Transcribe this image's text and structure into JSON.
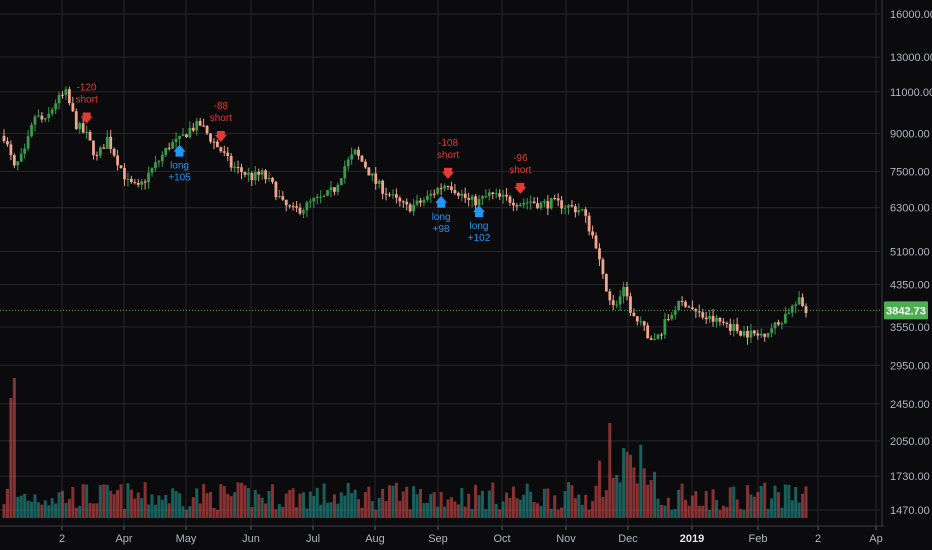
{
  "chart_data": {
    "type": "candlestick",
    "y_scale": "log",
    "grid": true,
    "y_ticks": [
      "16000.00",
      "13000.00",
      "11000.00",
      "9000.00",
      "7500.00",
      "6300.00",
      "5100.00",
      "4350.00",
      "3550.00",
      "2950.00",
      "2450.00",
      "2050.00",
      "1730.00",
      "1470.00"
    ],
    "y_tick_values": [
      16000,
      13000,
      11000,
      9000,
      7500,
      6300,
      5100,
      4350,
      3550,
      2950,
      2450,
      2050,
      1730,
      1470
    ],
    "x_ticks": [
      "2",
      "Apr",
      "May",
      "Jun",
      "Jul",
      "Aug",
      "Sep",
      "Oct",
      "Nov",
      "Dec",
      "2019",
      "Feb",
      "2",
      "Ap"
    ],
    "x_tick_bold": "2019",
    "price_series": [
      [
        0,
        8900
      ],
      [
        3,
        7600
      ],
      [
        6,
        8200
      ],
      [
        9,
        9800
      ],
      [
        12,
        9500
      ],
      [
        15,
        10500
      ],
      [
        18,
        10900
      ],
      [
        21,
        9400
      ],
      [
        24,
        8900
      ],
      [
        27,
        8000
      ],
      [
        30,
        8800
      ],
      [
        33,
        7900
      ],
      [
        36,
        7100
      ],
      [
        39,
        6900
      ],
      [
        42,
        7400
      ],
      [
        45,
        7900
      ],
      [
        48,
        8500
      ],
      [
        51,
        8700
      ],
      [
        54,
        9200
      ],
      [
        57,
        9400
      ],
      [
        60,
        8800
      ],
      [
        63,
        8300
      ],
      [
        66,
        7700
      ],
      [
        69,
        7500
      ],
      [
        72,
        7300
      ],
      [
        75,
        7400
      ],
      [
        78,
        7000
      ],
      [
        81,
        6400
      ],
      [
        84,
        6200
      ],
      [
        87,
        6300
      ],
      [
        90,
        6500
      ],
      [
        93,
        6600
      ],
      [
        96,
        6900
      ],
      [
        99,
        7700
      ],
      [
        102,
        8200
      ],
      [
        105,
        7700
      ],
      [
        108,
        7100
      ],
      [
        111,
        6800
      ],
      [
        114,
        6500
      ],
      [
        117,
        6300
      ],
      [
        120,
        6400
      ],
      [
        123,
        6600
      ],
      [
        126,
        6900
      ],
      [
        129,
        7100
      ],
      [
        132,
        6800
      ],
      [
        135,
        6500
      ],
      [
        138,
        6500
      ],
      [
        141,
        6700
      ],
      [
        144,
        6600
      ],
      [
        147,
        6550
      ],
      [
        150,
        6450
      ],
      [
        153,
        6500
      ],
      [
        156,
        6400
      ],
      [
        159,
        6450
      ],
      [
        162,
        6400
      ],
      [
        165,
        6300
      ],
      [
        168,
        6200
      ],
      [
        171,
        5500
      ],
      [
        174,
        4500
      ],
      [
        177,
        3900
      ],
      [
        180,
        4200
      ],
      [
        183,
        3700
      ],
      [
        186,
        3500
      ],
      [
        189,
        3300
      ],
      [
        192,
        3600
      ],
      [
        195,
        3900
      ],
      [
        198,
        4000
      ],
      [
        201,
        3800
      ],
      [
        204,
        3700
      ],
      [
        207,
        3650
      ],
      [
        210,
        3600
      ],
      [
        213,
        3500
      ],
      [
        216,
        3450
      ],
      [
        219,
        3400
      ],
      [
        222,
        3500
      ],
      [
        225,
        3600
      ],
      [
        228,
        3850
      ],
      [
        231,
        4000
      ],
      [
        233,
        3842.73
      ]
    ],
    "volume_min": 1470,
    "volume_ticks_note": "volume bars share bottom panel",
    "last_price": "3842.73",
    "last_price_value": 3842.73,
    "signals": [
      {
        "label": "-120",
        "label2": "short",
        "kind": "short",
        "x": 24,
        "price": 9400
      },
      {
        "label": "long",
        "label2": "+105",
        "kind": "long",
        "x": 51,
        "price": 8700
      },
      {
        "label": "-88",
        "label2": "short",
        "kind": "short",
        "x": 63,
        "price": 8600
      },
      {
        "label": "-108",
        "label2": "short",
        "kind": "short",
        "x": 129,
        "price": 7200
      },
      {
        "label": "long",
        "label2": "+98",
        "kind": "long",
        "x": 127,
        "price": 6800
      },
      {
        "label": "long",
        "label2": "+102",
        "kind": "long",
        "x": 138,
        "price": 6500
      },
      {
        "label": "-96",
        "label2": "short",
        "kind": "short",
        "x": 150,
        "price": 6700
      }
    ],
    "colors": {
      "up": "#26a69a",
      "down": "#ef5350",
      "up_candle": "#3c9a4e",
      "down_candle": "#f0a58c",
      "long": "#2196f3",
      "short": "#e53935",
      "price_line": "#4caf50",
      "grid": "#24262c",
      "background": "#0b0b0e"
    }
  }
}
